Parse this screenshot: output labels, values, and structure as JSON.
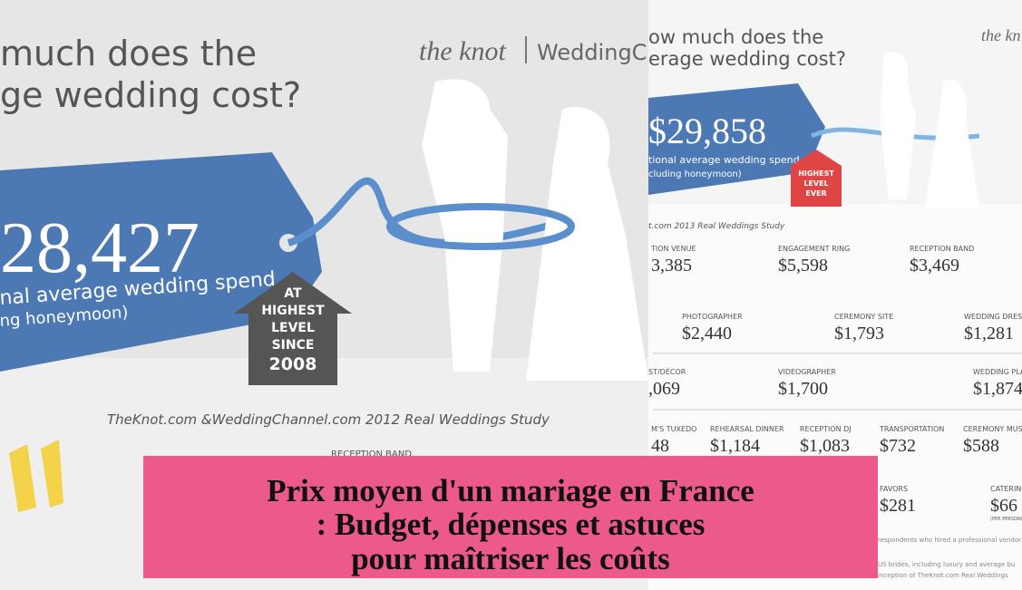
{
  "left": {
    "heading": [
      "much does the",
      "ge wedding cost?"
    ],
    "logo": [
      "the knot",
      "WeddingCh"
    ],
    "tag": {
      "amount": "28,427",
      "caption": "nal average wedding spend",
      "note": "ng honeymoon)"
    },
    "badge": [
      "AT",
      "HIGHEST",
      "LEVEL",
      "SINCE",
      "2008"
    ],
    "source": "TheKnot.com &WeddingChannel.com 2012 Real Weddings Study",
    "partial_item": "RECEPTION BAND"
  },
  "right": {
    "heading": [
      "ow much does the",
      "erage wedding cost?"
    ],
    "logo": "the kn",
    "tag": {
      "amount": "$29,858",
      "caption": "tional average wedding spend",
      "note": "cluding honeymoon)"
    },
    "badge": [
      "HIGHEST",
      "LEVEL",
      "EVER"
    ],
    "source": "t.com 2013 Real Weddings Study",
    "items": [
      {
        "label": "TION VENUE",
        "value": "3,385"
      },
      {
        "label": "ENGAGEMENT RING",
        "value": "$5,598"
      },
      {
        "label": "RECEPTION BAND",
        "value": "$3,469"
      },
      {
        "label": "PHOTOGRAPHER",
        "value": "$2,440"
      },
      {
        "label": "CEREMONY SITE",
        "value": "$1,793"
      },
      {
        "label": "WEDDING DRESS",
        "value": "$1,281"
      },
      {
        "label": "ST/DÉCOR",
        "value": ",069"
      },
      {
        "label": "VIDEOGRAPHER",
        "value": "$1,700"
      },
      {
        "label": "WEDDING PLA",
        "value": "$1,874"
      },
      {
        "label": "M'S TUXEDO",
        "value": "48"
      },
      {
        "label": "REHEARSAL DINNER",
        "value": "$1,184"
      },
      {
        "label": "RECEPTION DJ",
        "value": "$1,083"
      },
      {
        "label": "TRANSPORTATION",
        "value": "$732"
      },
      {
        "label": "CEREMONY MUSIC",
        "value": "$588"
      },
      {
        "label": "FAVORS",
        "value": "$281"
      },
      {
        "label": "CATERING",
        "value": "$66",
        "note": "(PER PERSON)"
      }
    ],
    "footnotes": [
      "respondents who hired a professional vendor for the",
      "US brides, including luxury and average bu",
      "inception of TheKnot.com Real Weddings"
    ]
  },
  "title": [
    "Prix moyen d'un mariage en France",
    ": Budget, dépenses et astuces",
    "pour maîtriser les coûts"
  ]
}
